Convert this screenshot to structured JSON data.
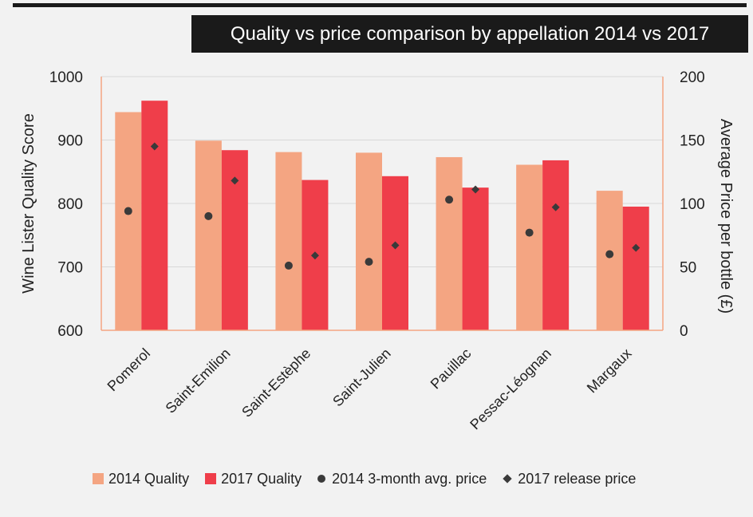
{
  "title": "Quality vs price comparison by appellation 2014 vs 2017",
  "chart_data": {
    "type": "bar",
    "categories": [
      "Pomerol",
      "Saint-Emilion",
      "Saint-Estèphe",
      "Saint-Julien",
      "Pauillac",
      "Pessac-Léognan",
      "Margaux"
    ],
    "series": [
      {
        "name": "2014 Quality",
        "axis": "left",
        "kind": "bar",
        "color": "#f4a582",
        "values": [
          944,
          899,
          881,
          880,
          873,
          861,
          820
        ]
      },
      {
        "name": "2017 Quality",
        "axis": "right-bars",
        "kind": "bar",
        "color": "#ef3e4a",
        "values": [
          962,
          884,
          837,
          843,
          825,
          868,
          795
        ]
      },
      {
        "name": "2014 3-month avg. price",
        "axis": "right",
        "kind": "dot",
        "color": "#3a3a3a",
        "values": [
          94,
          90,
          51,
          54,
          103,
          77,
          60
        ]
      },
      {
        "name": "2017 release price",
        "axis": "right",
        "kind": "diamond",
        "color": "#3a3a3a",
        "values": [
          145,
          118,
          59,
          67,
          111,
          97,
          65
        ]
      }
    ],
    "ylabel": "Wine Lister Quality Score",
    "ylim": [
      600,
      1000
    ],
    "yticks": [
      "600",
      "700",
      "800",
      "900",
      "1000"
    ],
    "y2label": "Average Price per bottle (£)",
    "y2lim": [
      0,
      200
    ],
    "y2ticks": [
      "0",
      "50",
      "100",
      "150",
      "200"
    ],
    "grid": true,
    "legend": "bottom"
  }
}
